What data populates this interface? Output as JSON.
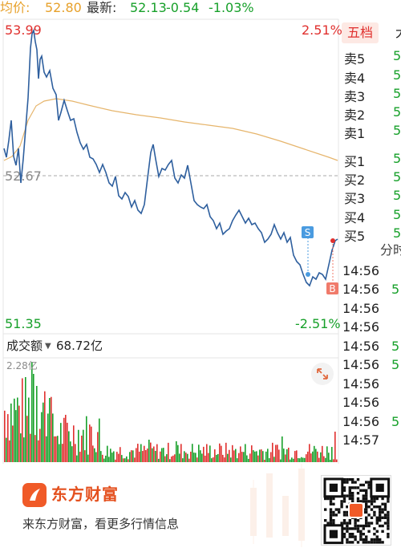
{
  "header": {
    "avg_label": "均价:",
    "avg_value": "52.80",
    "latest_label": "最新:",
    "latest_value": "52.13",
    "change": "-0.54",
    "change_pct": "-1.03%"
  },
  "intraday": {
    "price_high_label": "53.99",
    "price_low_label": "51.35",
    "prev_close_label": "52.67",
    "pct_high_label": "2.51%",
    "pct_low_label": "-2.51%",
    "sell_marker": "S",
    "buy_marker": "B"
  },
  "volume": {
    "label": "成交额",
    "value": "68.72亿",
    "max_label": "2.28亿"
  },
  "panel": {
    "tabs": [
      "五档",
      "大"
    ],
    "order_book": [
      {
        "label": "卖5",
        "value": "5",
        "color": "#17a02a"
      },
      {
        "label": "卖4",
        "value": "5",
        "color": "#17a02a"
      },
      {
        "label": "卖3",
        "value": "5",
        "color": "#17a02a"
      },
      {
        "label": "卖2",
        "value": "5",
        "color": "#17a02a"
      },
      {
        "label": "卖1",
        "value": "5",
        "color": "#17a02a"
      },
      {
        "label": "买1",
        "value": "5",
        "color": "#17a02a"
      },
      {
        "label": "买2",
        "value": "5",
        "color": "#17a02a"
      },
      {
        "label": "买3",
        "value": "5",
        "color": "#17a02a"
      },
      {
        "label": "买4",
        "value": "5",
        "color": "#17a02a"
      },
      {
        "label": "买5",
        "value": "5",
        "color": "#17a02a"
      }
    ],
    "ticks_header": "分时",
    "ticks": [
      {
        "time": "14:56",
        "value": "",
        "color": "#17a02a"
      },
      {
        "time": "14:56",
        "value": "5",
        "color": "#17a02a"
      },
      {
        "time": "14:56",
        "value": "",
        "color": "#17a02a"
      },
      {
        "time": "14:56",
        "value": "",
        "color": "#17a02a"
      },
      {
        "time": "14:56",
        "value": "5",
        "color": "#17a02a"
      },
      {
        "time": "14:56",
        "value": "5",
        "color": "#17a02a"
      },
      {
        "time": "14:56",
        "value": "",
        "color": "#17a02a"
      },
      {
        "time": "14:56",
        "value": "",
        "color": "#17a02a"
      },
      {
        "time": "14:56",
        "value": "5",
        "color": "#17a02a"
      },
      {
        "time": "14:57",
        "value": "",
        "color": "#17a02a"
      }
    ]
  },
  "footer": {
    "brand": "东方财富",
    "slogan": "来东方财富，看更多行情信息"
  },
  "colors": {
    "price_line": "#2e5f9e",
    "avg_line": "#e6b56c",
    "up": "#e0302e",
    "down": "#17a02a",
    "marker": "#4a9be0",
    "buy_marker": "#f07a6a"
  }
}
